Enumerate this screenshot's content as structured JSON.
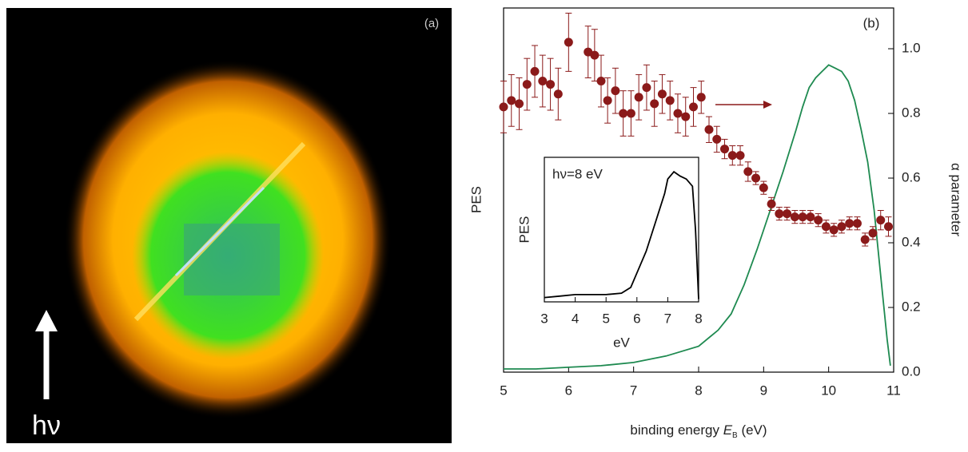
{
  "image_panel": {
    "label": "(a)",
    "arrow_label": "hν"
  },
  "chart_data": [
    {
      "type": "scatter",
      "label": "(b)",
      "xlabel": {
        "text": "binding energy",
        "symbol": "E",
        "subscript": "B",
        "unit": "(eV)"
      },
      "ylabel": "PES",
      "y2label": "α parameter",
      "xlim": [
        5,
        11
      ],
      "xticks": [
        5,
        6,
        7,
        8,
        9,
        10,
        11
      ],
      "ylim": [
        0,
        1.126
      ],
      "y2lim": [
        0,
        1.126
      ],
      "y2ticks": [
        {
          "value": 0,
          "label": "0.0"
        },
        0.2,
        0.4,
        0.6,
        0.8,
        {
          "value": 1,
          "label": "1.0"
        }
      ],
      "series": [
        {
          "type": "line",
          "color": "#1e8a50",
          "x": [
            5.0,
            5.5,
            6.0,
            6.5,
            7.0,
            7.5,
            8.0,
            8.3,
            8.5,
            8.7,
            8.9,
            9.1,
            9.3,
            9.5,
            9.6,
            9.7,
            9.8,
            9.9,
            10.0,
            10.1,
            10.2,
            10.3,
            10.4,
            10.5,
            10.6,
            10.7,
            10.8,
            10.9,
            10.95
          ],
          "values": [
            0.01,
            0.01,
            0.015,
            0.02,
            0.03,
            0.05,
            0.08,
            0.13,
            0.18,
            0.27,
            0.38,
            0.5,
            0.62,
            0.75,
            0.82,
            0.88,
            0.91,
            0.93,
            0.95,
            0.94,
            0.93,
            0.9,
            0.84,
            0.75,
            0.65,
            0.5,
            0.3,
            0.1,
            0.02
          ]
        },
        {
          "type": "scatter",
          "axis": "y2",
          "color": "#8b1a1a",
          "x": [
            5.0,
            5.12,
            5.24,
            5.36,
            5.48,
            5.6,
            5.72,
            5.84,
            6.0,
            6.3,
            6.4,
            6.5,
            6.6,
            6.72,
            6.84,
            6.96,
            7.08,
            7.2,
            7.32,
            7.44,
            7.56,
            7.68,
            7.8,
            7.92,
            8.04,
            8.16,
            8.28,
            8.4,
            8.52,
            8.64,
            8.76,
            8.88,
            9.0,
            9.12,
            9.24,
            9.36,
            9.48,
            9.6,
            9.72,
            9.84,
            9.96,
            10.08,
            10.2,
            10.32,
            10.44,
            10.56,
            10.68,
            10.8,
            10.92
          ],
          "values": [
            0.82,
            0.84,
            0.83,
            0.89,
            0.93,
            0.9,
            0.89,
            0.86,
            1.02,
            0.99,
            0.98,
            0.9,
            0.84,
            0.87,
            0.8,
            0.8,
            0.85,
            0.88,
            0.83,
            0.86,
            0.84,
            0.8,
            0.79,
            0.82,
            0.85,
            0.75,
            0.72,
            0.69,
            0.67,
            0.67,
            0.62,
            0.6,
            0.57,
            0.52,
            0.49,
            0.49,
            0.48,
            0.48,
            0.48,
            0.47,
            0.45,
            0.44,
            0.45,
            0.46,
            0.46,
            0.41,
            0.43,
            0.47,
            0.45
          ],
          "errors": [
            0.08,
            0.08,
            0.08,
            0.08,
            0.08,
            0.08,
            0.08,
            0.08,
            0.09,
            0.08,
            0.08,
            0.08,
            0.07,
            0.07,
            0.07,
            0.07,
            0.07,
            0.07,
            0.07,
            0.06,
            0.06,
            0.06,
            0.06,
            0.06,
            0.05,
            0.04,
            0.04,
            0.03,
            0.03,
            0.03,
            0.03,
            0.02,
            0.02,
            0.02,
            0.02,
            0.02,
            0.02,
            0.02,
            0.02,
            0.02,
            0.02,
            0.02,
            0.02,
            0.02,
            0.02,
            0.02,
            0.02,
            0.03,
            0.03
          ]
        }
      ]
    },
    {
      "type": "line",
      "title": "hν=8 eV",
      "xlabel": "eV",
      "ylabel": "PES",
      "xlim": [
        3,
        8
      ],
      "xticks": [
        3,
        4,
        5,
        6,
        7,
        8
      ],
      "ylim": [
        0,
        1
      ],
      "series": [
        {
          "color": "#000000",
          "x": [
            3.0,
            3.5,
            4.0,
            4.5,
            5.0,
            5.5,
            5.8,
            6.0,
            6.3,
            6.6,
            6.9,
            7.0,
            7.2,
            7.4,
            7.6,
            7.8,
            7.9,
            8.0
          ],
          "values": [
            0.03,
            0.04,
            0.05,
            0.05,
            0.05,
            0.06,
            0.1,
            0.2,
            0.35,
            0.55,
            0.75,
            0.85,
            0.9,
            0.87,
            0.85,
            0.8,
            0.5,
            0.02
          ]
        }
      ]
    }
  ]
}
